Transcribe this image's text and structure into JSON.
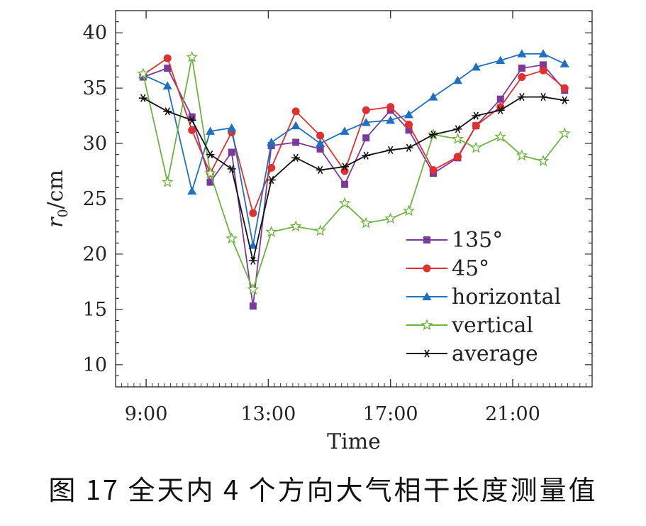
{
  "caption": "图 17 全天内 4 个方向大气相干长度测量值",
  "chart_data": {
    "type": "line",
    "title": "",
    "xlabel": "Time",
    "ylabel_var": "r",
    "ylabel_sub": "0",
    "ylabel_unit": "/cm",
    "xlim": [
      8,
      23.6
    ],
    "ylim": [
      8,
      42
    ],
    "yticks": [
      10,
      15,
      20,
      25,
      30,
      35,
      40
    ],
    "xticks": [
      9,
      13,
      17,
      21
    ],
    "xtick_labels": [
      "9:00",
      "13:00",
      "17:00",
      "21:00"
    ],
    "grid": false,
    "legend_position": "center-right",
    "series": [
      {
        "name": "135°",
        "color": "#7b3a9a",
        "marker": "square",
        "x": [
          8.9,
          9.7,
          10.5,
          11.1,
          11.8,
          12.5,
          13.1,
          13.9,
          14.7,
          15.5,
          16.2,
          17.0,
          17.6,
          18.4,
          19.2,
          19.8,
          20.6,
          21.3,
          22.0,
          22.7
        ],
        "y": [
          36,
          36.8,
          32.4,
          26.5,
          29.2,
          15.3,
          29.8,
          30.1,
          29.5,
          26.3,
          30.5,
          33.0,
          31.2,
          27.3,
          28.7,
          31.6,
          34.0,
          36.8,
          37.1,
          34.8
        ]
      },
      {
        "name": "45°",
        "color": "#e03030",
        "marker": "circle",
        "x": [
          8.9,
          9.7,
          10.5,
          11.1,
          11.8,
          12.5,
          13.1,
          13.9,
          14.7,
          15.5,
          16.2,
          17.0,
          17.6,
          18.4,
          19.2,
          19.8,
          20.6,
          21.3,
          22.0,
          22.7
        ],
        "y": [
          36.2,
          37.7,
          31.2,
          27.3,
          31.0,
          23.7,
          27.8,
          32.9,
          30.7,
          27.5,
          33.0,
          33.3,
          31.7,
          27.6,
          28.8,
          31.6,
          33.3,
          36.0,
          36.6,
          35.0
        ]
      },
      {
        "name": "horizontal",
        "color": "#2070c0",
        "marker": "triangle",
        "x": [
          8.9,
          9.7,
          10.5,
          11.1,
          11.8,
          12.5,
          13.1,
          13.9,
          14.7,
          15.5,
          16.2,
          17.0,
          17.6,
          18.4,
          19.2,
          19.8,
          20.6,
          21.3,
          22.0,
          22.7
        ],
        "y": [
          36.2,
          35.2,
          25.7,
          31.1,
          31.4,
          20.8,
          30.1,
          31.6,
          30.0,
          31.1,
          31.9,
          32.1,
          32.6,
          34.2,
          35.7,
          36.9,
          37.5,
          38.1,
          38.1,
          37.2
        ]
      },
      {
        "name": "vertical",
        "color": "#6db33f",
        "marker": "star",
        "x": [
          8.9,
          9.7,
          10.5,
          11.1,
          11.8,
          12.5,
          13.1,
          13.9,
          14.7,
          15.5,
          16.2,
          17.0,
          17.6,
          18.4,
          19.2,
          19.8,
          20.6,
          21.3,
          22.0,
          22.7
        ],
        "y": [
          36.3,
          26.5,
          37.8,
          27.3,
          21.4,
          16.8,
          22.0,
          22.5,
          22.1,
          24.6,
          22.8,
          23.2,
          23.9,
          30.8,
          30.4,
          29.6,
          30.6,
          28.9,
          28.4,
          30.9
        ]
      },
      {
        "name": "average",
        "color": "#111111",
        "marker": "asterisk",
        "x": [
          8.9,
          9.7,
          10.5,
          11.1,
          11.8,
          12.5,
          13.1,
          13.9,
          14.7,
          15.5,
          16.2,
          17.0,
          17.6,
          18.4,
          19.2,
          19.8,
          20.6,
          21.3,
          22.0,
          22.7
        ],
        "y": [
          34.1,
          32.9,
          32.1,
          29.0,
          27.7,
          19.4,
          26.7,
          28.7,
          27.6,
          27.9,
          28.9,
          29.4,
          29.6,
          30.8,
          31.3,
          32.5,
          33.0,
          34.2,
          34.2,
          33.9
        ]
      }
    ]
  }
}
